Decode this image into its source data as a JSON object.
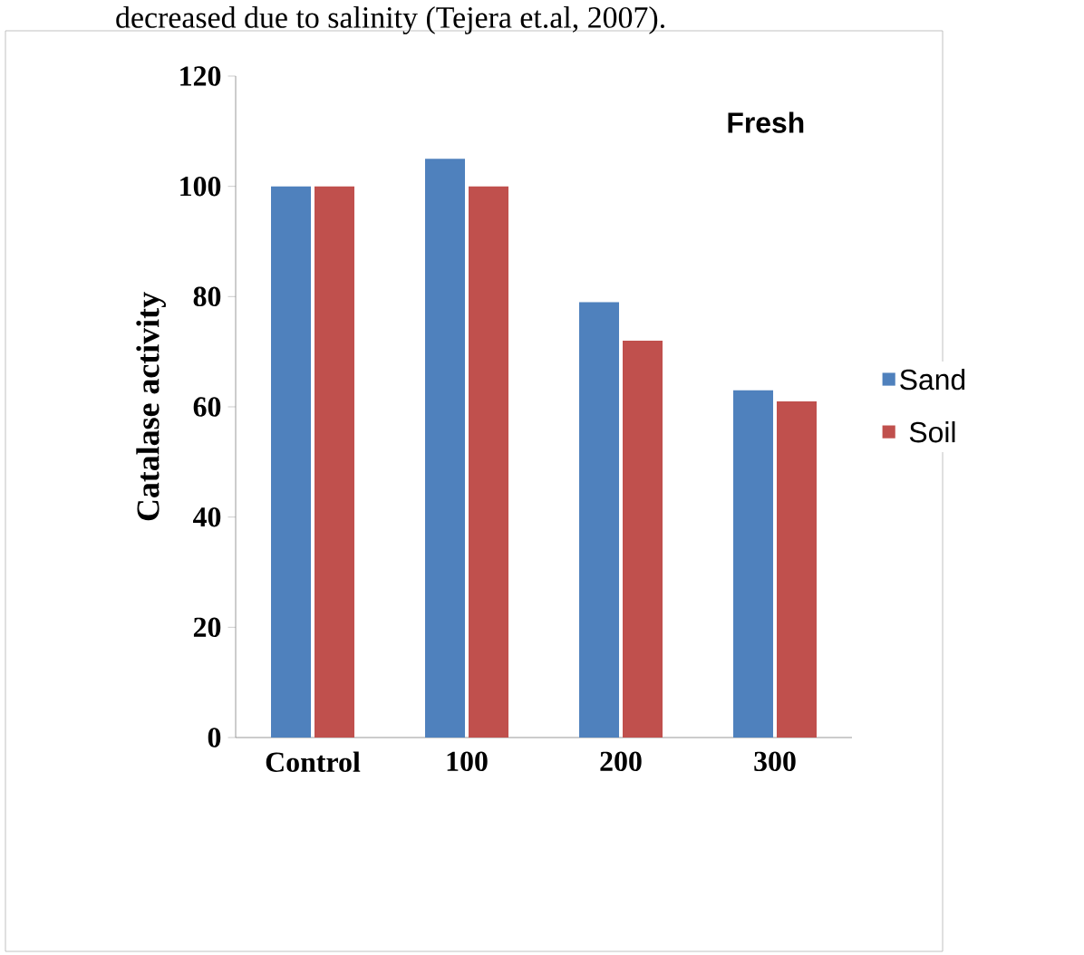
{
  "chart_data": {
    "type": "bar",
    "title": "Fresh",
    "ylabel": "Catalase activity",
    "annotations": [
      "decreased due to salinity (Tejera et.al, 2007)."
    ],
    "categories": [
      "Control",
      "100",
      "200",
      "300"
    ],
    "series": [
      {
        "name": "Sand",
        "color": "#4f81bd",
        "values": [
          100,
          105,
          79,
          63
        ]
      },
      {
        "name": "Soil",
        "color": "#c0504d",
        "values": [
          100,
          100,
          72,
          61
        ]
      }
    ],
    "ylim": [
      0,
      120
    ],
    "yticks": [
      0,
      20,
      40,
      60,
      80,
      100,
      120
    ],
    "grid": false,
    "legend": "right"
  }
}
